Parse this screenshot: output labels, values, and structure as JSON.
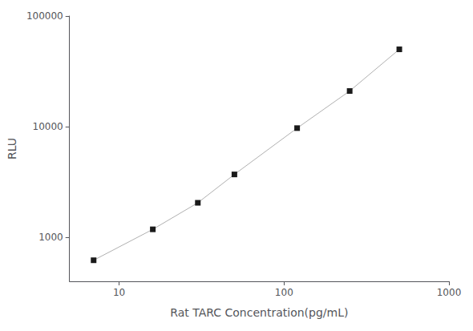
{
  "chart_data": {
    "type": "line",
    "x": [
      7,
      16,
      30,
      50,
      120,
      250,
      500
    ],
    "values": [
      620,
      1180,
      2050,
      3700,
      9700,
      21000,
      50000
    ],
    "color": "#b0b0b0",
    "colors": [
      "#1a1a1a",
      "#1a1a1a",
      "#1a1a1a",
      "#1a1a1a",
      "#1a1a1a",
      "#1a1a1a",
      "#1a1a1a"
    ],
    "marker": "square",
    "xlabel": "Rat TARC Concentration(pg/mL)",
    "ylabel": "RLU",
    "xlim": [
      5,
      1000
    ],
    "ylim": [
      400,
      100000
    ],
    "xticks": [
      10,
      100,
      1000
    ],
    "yticks": [
      1000,
      10000,
      100000
    ],
    "log": true,
    "grid": false
  }
}
